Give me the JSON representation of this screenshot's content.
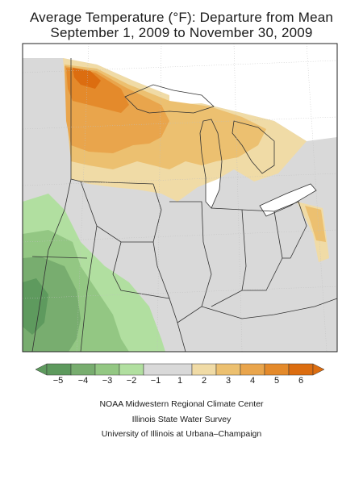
{
  "title": {
    "line1": "Average Temperature (°F): Departure from Mean",
    "line2": "September 1, 2009 to November 30, 2009"
  },
  "legend": {
    "labels": [
      "−5",
      "−4",
      "−3",
      "−2",
      "−1",
      "1",
      "2",
      "3",
      "4",
      "5",
      "6"
    ],
    "colors": {
      "minus5": "#5e9a5e",
      "minus4": "#78ad6f",
      "minus3": "#93c783",
      "minus2": "#b1dfa0",
      "neutral": "#d9d9d9",
      "plus1": "#f0dba6",
      "plus2": "#ecc070",
      "plus3": "#e9a54c",
      "plus4": "#e48a2b",
      "plus5": "#dc6d10"
    }
  },
  "footer": {
    "line1": "NOAA Midwestern Regional Climate Center",
    "line2": "Illinois State Water Survey",
    "line3": "University of Illinois at Urbana–Champaign"
  }
}
